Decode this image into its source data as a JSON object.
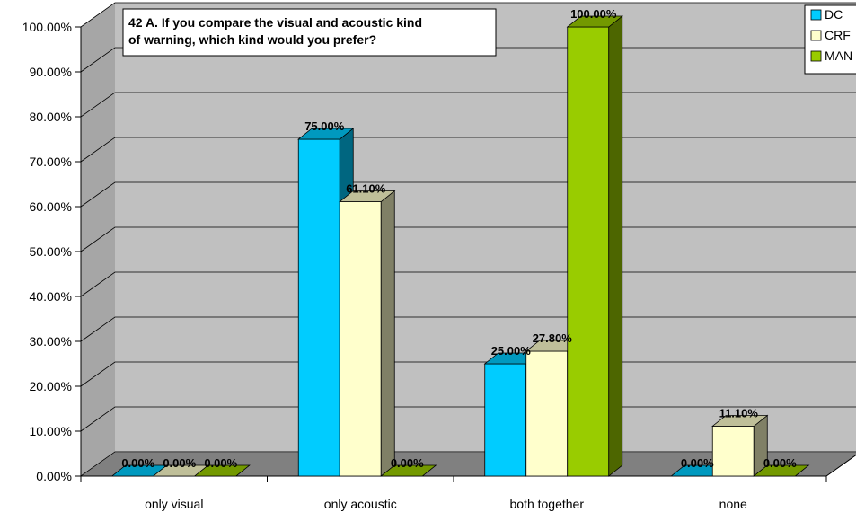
{
  "chart_data": {
    "type": "bar",
    "title": "42 A. If you compare the visual and acoustic kind of warning, which kind would you prefer?",
    "title_lines": [
      "42 A. If you compare the visual and acoustic kind",
      "of warning, which kind would you prefer?"
    ],
    "categories": [
      "only visual",
      "only acoustic",
      "both together",
      "none"
    ],
    "series": [
      {
        "name": "DC",
        "legend_text": "DC",
        "color": "#00CCFF",
        "values": [
          0,
          75,
          25,
          0
        ],
        "labels": [
          "0.00%",
          "75.00%",
          "25.00%",
          "0.00%"
        ]
      },
      {
        "name": "CRF",
        "legend_text": "CRF",
        "color": "#FFFFCC",
        "values": [
          0,
          61.1,
          27.8,
          11.1
        ],
        "labels": [
          "0.00%",
          "61.10%",
          "27.80%",
          "11.10%"
        ]
      },
      {
        "name": "MAN",
        "legend_text": "MAN",
        "color": "#99CC00",
        "values": [
          0,
          0,
          100,
          0
        ],
        "labels": [
          "0.00%",
          "0.00%",
          "100.00%",
          "0.00%"
        ]
      }
    ],
    "ylim": [
      0,
      100
    ],
    "yticks": [
      "0.00%",
      "10.00%",
      "20.00%",
      "30.00%",
      "40.00%",
      "50.00%",
      "60.00%",
      "70.00%",
      "80.00%",
      "90.00%",
      "100.00%"
    ],
    "ylabel": "",
    "xlabel": "",
    "grid": true,
    "legend_position": "top-right",
    "wall_color": "#C0C0C0",
    "floor_color": "#808080"
  }
}
